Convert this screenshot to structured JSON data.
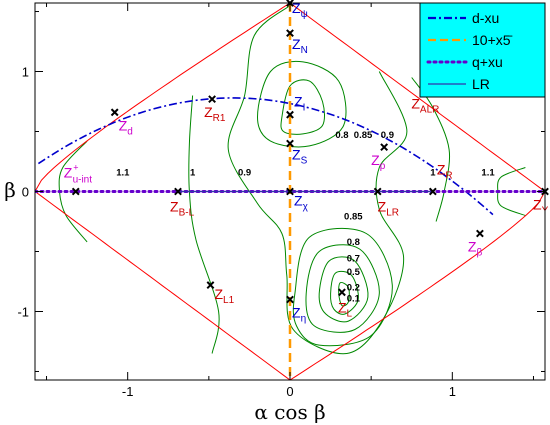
{
  "chart_data": {
    "type": "scatter",
    "xlabel": "α cos β",
    "ylabel": "β",
    "xlim": [
      -1.571,
      1.571
    ],
    "ylim": [
      -1.571,
      1.571
    ],
    "x_ticks": [
      -1,
      0,
      1
    ],
    "x_tick_labels": [
      "-1",
      "0",
      "1"
    ],
    "y_ticks": [
      -1,
      0,
      1
    ],
    "y_tick_labels": [
      "-1",
      "0",
      "1"
    ],
    "grid": false,
    "legend_position": "top-right",
    "legend_background": "#00ffff",
    "legend": [
      {
        "label": "d-xu",
        "color": "#0000cc",
        "style": "dash-dot"
      },
      {
        "label": "10+x5̄",
        "color": "#ff9900",
        "style": "dashed"
      },
      {
        "label": "q+xu",
        "color": "#6600cc",
        "style": "dotted"
      },
      {
        "label": "LR",
        "color": "#3333aa",
        "style": "solid"
      }
    ],
    "boundary_color": "#ff0000",
    "contour_color": "#008800",
    "contour_labels": [
      {
        "text": "1.1",
        "x": -1.03,
        "y": 0.16
      },
      {
        "text": "1",
        "x": -0.6,
        "y": 0.16
      },
      {
        "text": "0.9",
        "x": -0.28,
        "y": 0.16
      },
      {
        "text": "0.8",
        "x": 0.32,
        "y": 0.47
      },
      {
        "text": "0.85",
        "x": 0.45,
        "y": 0.47
      },
      {
        "text": "0.9",
        "x": 0.6,
        "y": 0.47
      },
      {
        "text": "1",
        "x": 0.88,
        "y": 0.16
      },
      {
        "text": "1.1",
        "x": 1.22,
        "y": 0.16
      },
      {
        "text": "0.85",
        "x": 0.39,
        "y": -0.21
      },
      {
        "text": "0.8",
        "x": 0.39,
        "y": -0.42
      },
      {
        "text": "0.7",
        "x": 0.39,
        "y": -0.56
      },
      {
        "text": "0.5",
        "x": 0.39,
        "y": -0.67
      },
      {
        "text": "0.2",
        "x": 0.39,
        "y": -0.8
      },
      {
        "text": "0.1",
        "x": 0.39,
        "y": -0.89
      }
    ],
    "points": [
      {
        "name": "Z_ψ",
        "base": "Z",
        "sub": "ψ",
        "x": 0.0,
        "y": 1.571,
        "color": "#0000cc",
        "dx": 2,
        "dy": 10
      },
      {
        "name": "Z_N",
        "base": "Z",
        "sub": "N",
        "x": 0.0,
        "y": 1.32,
        "color": "#0000cc",
        "dx": 2,
        "dy": 16
      },
      {
        "name": "Z_I",
        "base": "Z",
        "sub": "I",
        "x": 0.0,
        "y": 0.64,
        "color": "#0000cc",
        "dx": 4,
        "dy": -8
      },
      {
        "name": "Z_S",
        "base": "Z",
        "sub": "S",
        "x": 0.0,
        "y": 0.4,
        "color": "#0000cc",
        "dx": 2,
        "dy": 16
      },
      {
        "name": "Z_χ",
        "base": "Z",
        "sub": "χ",
        "x": 0.0,
        "y": 0.0,
        "color": "#0000cc",
        "dx": 4,
        "dy": 14
      },
      {
        "name": "Z_η",
        "base": "Z",
        "sub": "η",
        "x": 0.0,
        "y": -0.9,
        "color": "#0000cc",
        "dx": 2,
        "dy": 18
      },
      {
        "name": "Z_d",
        "base": "Z",
        "sub": "d",
        "x": -1.08,
        "y": 0.66,
        "color": "#cc00cc",
        "dx": 4,
        "dy": 18
      },
      {
        "name": "Z_R1",
        "base": "Z",
        "sub": "R1",
        "x": -0.48,
        "y": 0.77,
        "color": "#cc0000",
        "dx": -8,
        "dy": 18
      },
      {
        "name": "Z_ALR",
        "base": "Z",
        "sub": "ALR",
        "x": 0.84,
        "y": 0.84,
        "color": "#cc0000",
        "dx": -15,
        "dy": 18
      },
      {
        "name": "Z_p",
        "base": "Z",
        "sub": "p",
        "x": 0.58,
        "y": 0.37,
        "color": "#cc00cc",
        "dx": -13,
        "dy": 18
      },
      {
        "name": "Z_u-int^+",
        "base": "Z",
        "sub": "u-int",
        "sup": "+",
        "x": -1.32,
        "y": 0.0,
        "color": "#cc00cc",
        "dx": -12,
        "dy": -14
      },
      {
        "name": "Z_B-L",
        "base": "Z",
        "sub": "B-L",
        "x": -0.69,
        "y": 0.0,
        "color": "#cc0000",
        "dx": -8,
        "dy": 20
      },
      {
        "name": "Z_LR",
        "base": "Z",
        "sub": "LR",
        "x": 0.54,
        "y": 0.0,
        "color": "#cc0000",
        "dx": 0,
        "dy": 20
      },
      {
        "name": "Z_R",
        "base": "Z",
        "sub": "R",
        "x": 0.88,
        "y": 0.0,
        "color": "#cc0000",
        "dx": 4,
        "dy": -17
      },
      {
        "name": "Z_Y",
        "base": "Z",
        "sub": "Y",
        "x": 1.571,
        "y": 0.0,
        "color": "#cc0000",
        "dx": -12,
        "dy": 18
      },
      {
        "name": "Z_β",
        "base": "Z",
        "sub": "β",
        "x": 1.17,
        "y": -0.35,
        "color": "#cc00cc",
        "dx": -12,
        "dy": 18
      },
      {
        "name": "Z_L1",
        "base": "Z",
        "sub": "L1",
        "x": -0.49,
        "y": -0.78,
        "color": "#cc0000",
        "dx": 4,
        "dy": 14
      },
      {
        "name": "Z_L",
        "base": "Z",
        "sub": "L",
        "x": 0.32,
        "y": -0.84,
        "color": "#cc0000",
        "dx": -4,
        "dy": 20
      }
    ]
  }
}
